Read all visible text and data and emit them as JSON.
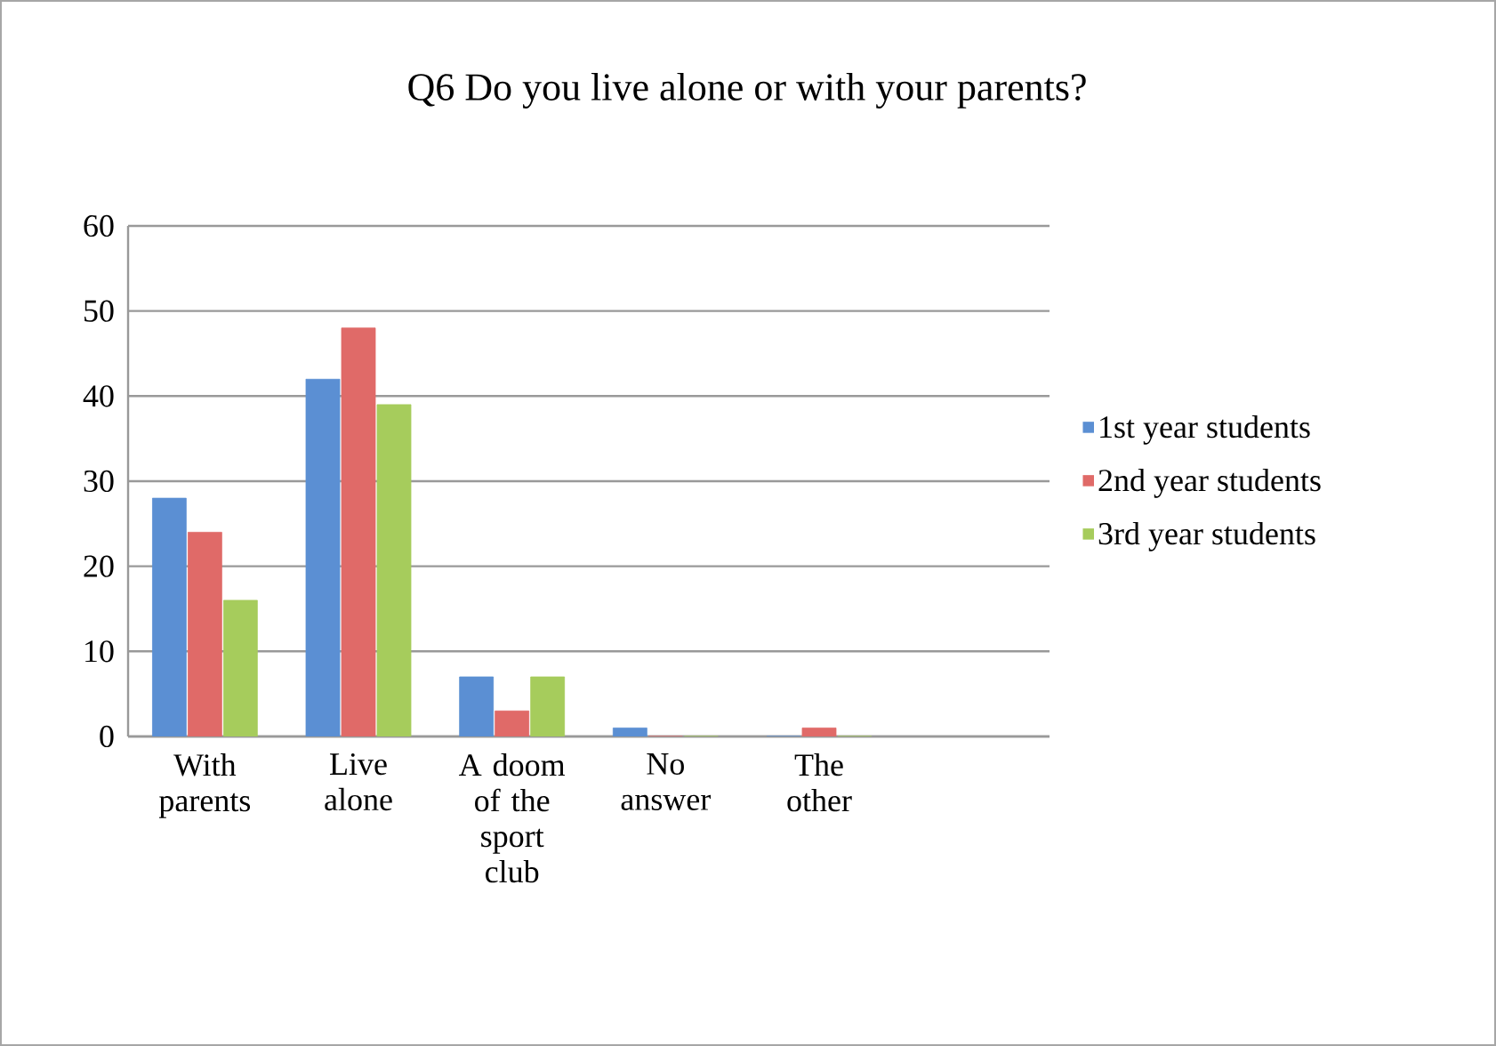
{
  "chart_data": {
    "type": "bar",
    "title": "Q6 Do you live alone or with your parents?",
    "categories": [
      "With parents",
      "Live alone",
      "A doom of the sport club",
      "No answer",
      "The other",
      null
    ],
    "series": [
      {
        "name": "1st year students",
        "color": "#5b8fd3",
        "values": [
          28,
          42,
          7,
          1,
          0,
          null
        ]
      },
      {
        "name": "2nd year students",
        "color": "#e06a68",
        "values": [
          24,
          48,
          3,
          0,
          1,
          null
        ]
      },
      {
        "name": "3rd year students",
        "color": "#a6cc5c",
        "values": [
          16,
          39,
          7,
          0,
          0,
          null
        ]
      }
    ],
    "ylim": [
      0,
      60
    ],
    "yticks": [
      0,
      10,
      20,
      30,
      40,
      50,
      60
    ],
    "grid": "y",
    "legend": "right"
  }
}
